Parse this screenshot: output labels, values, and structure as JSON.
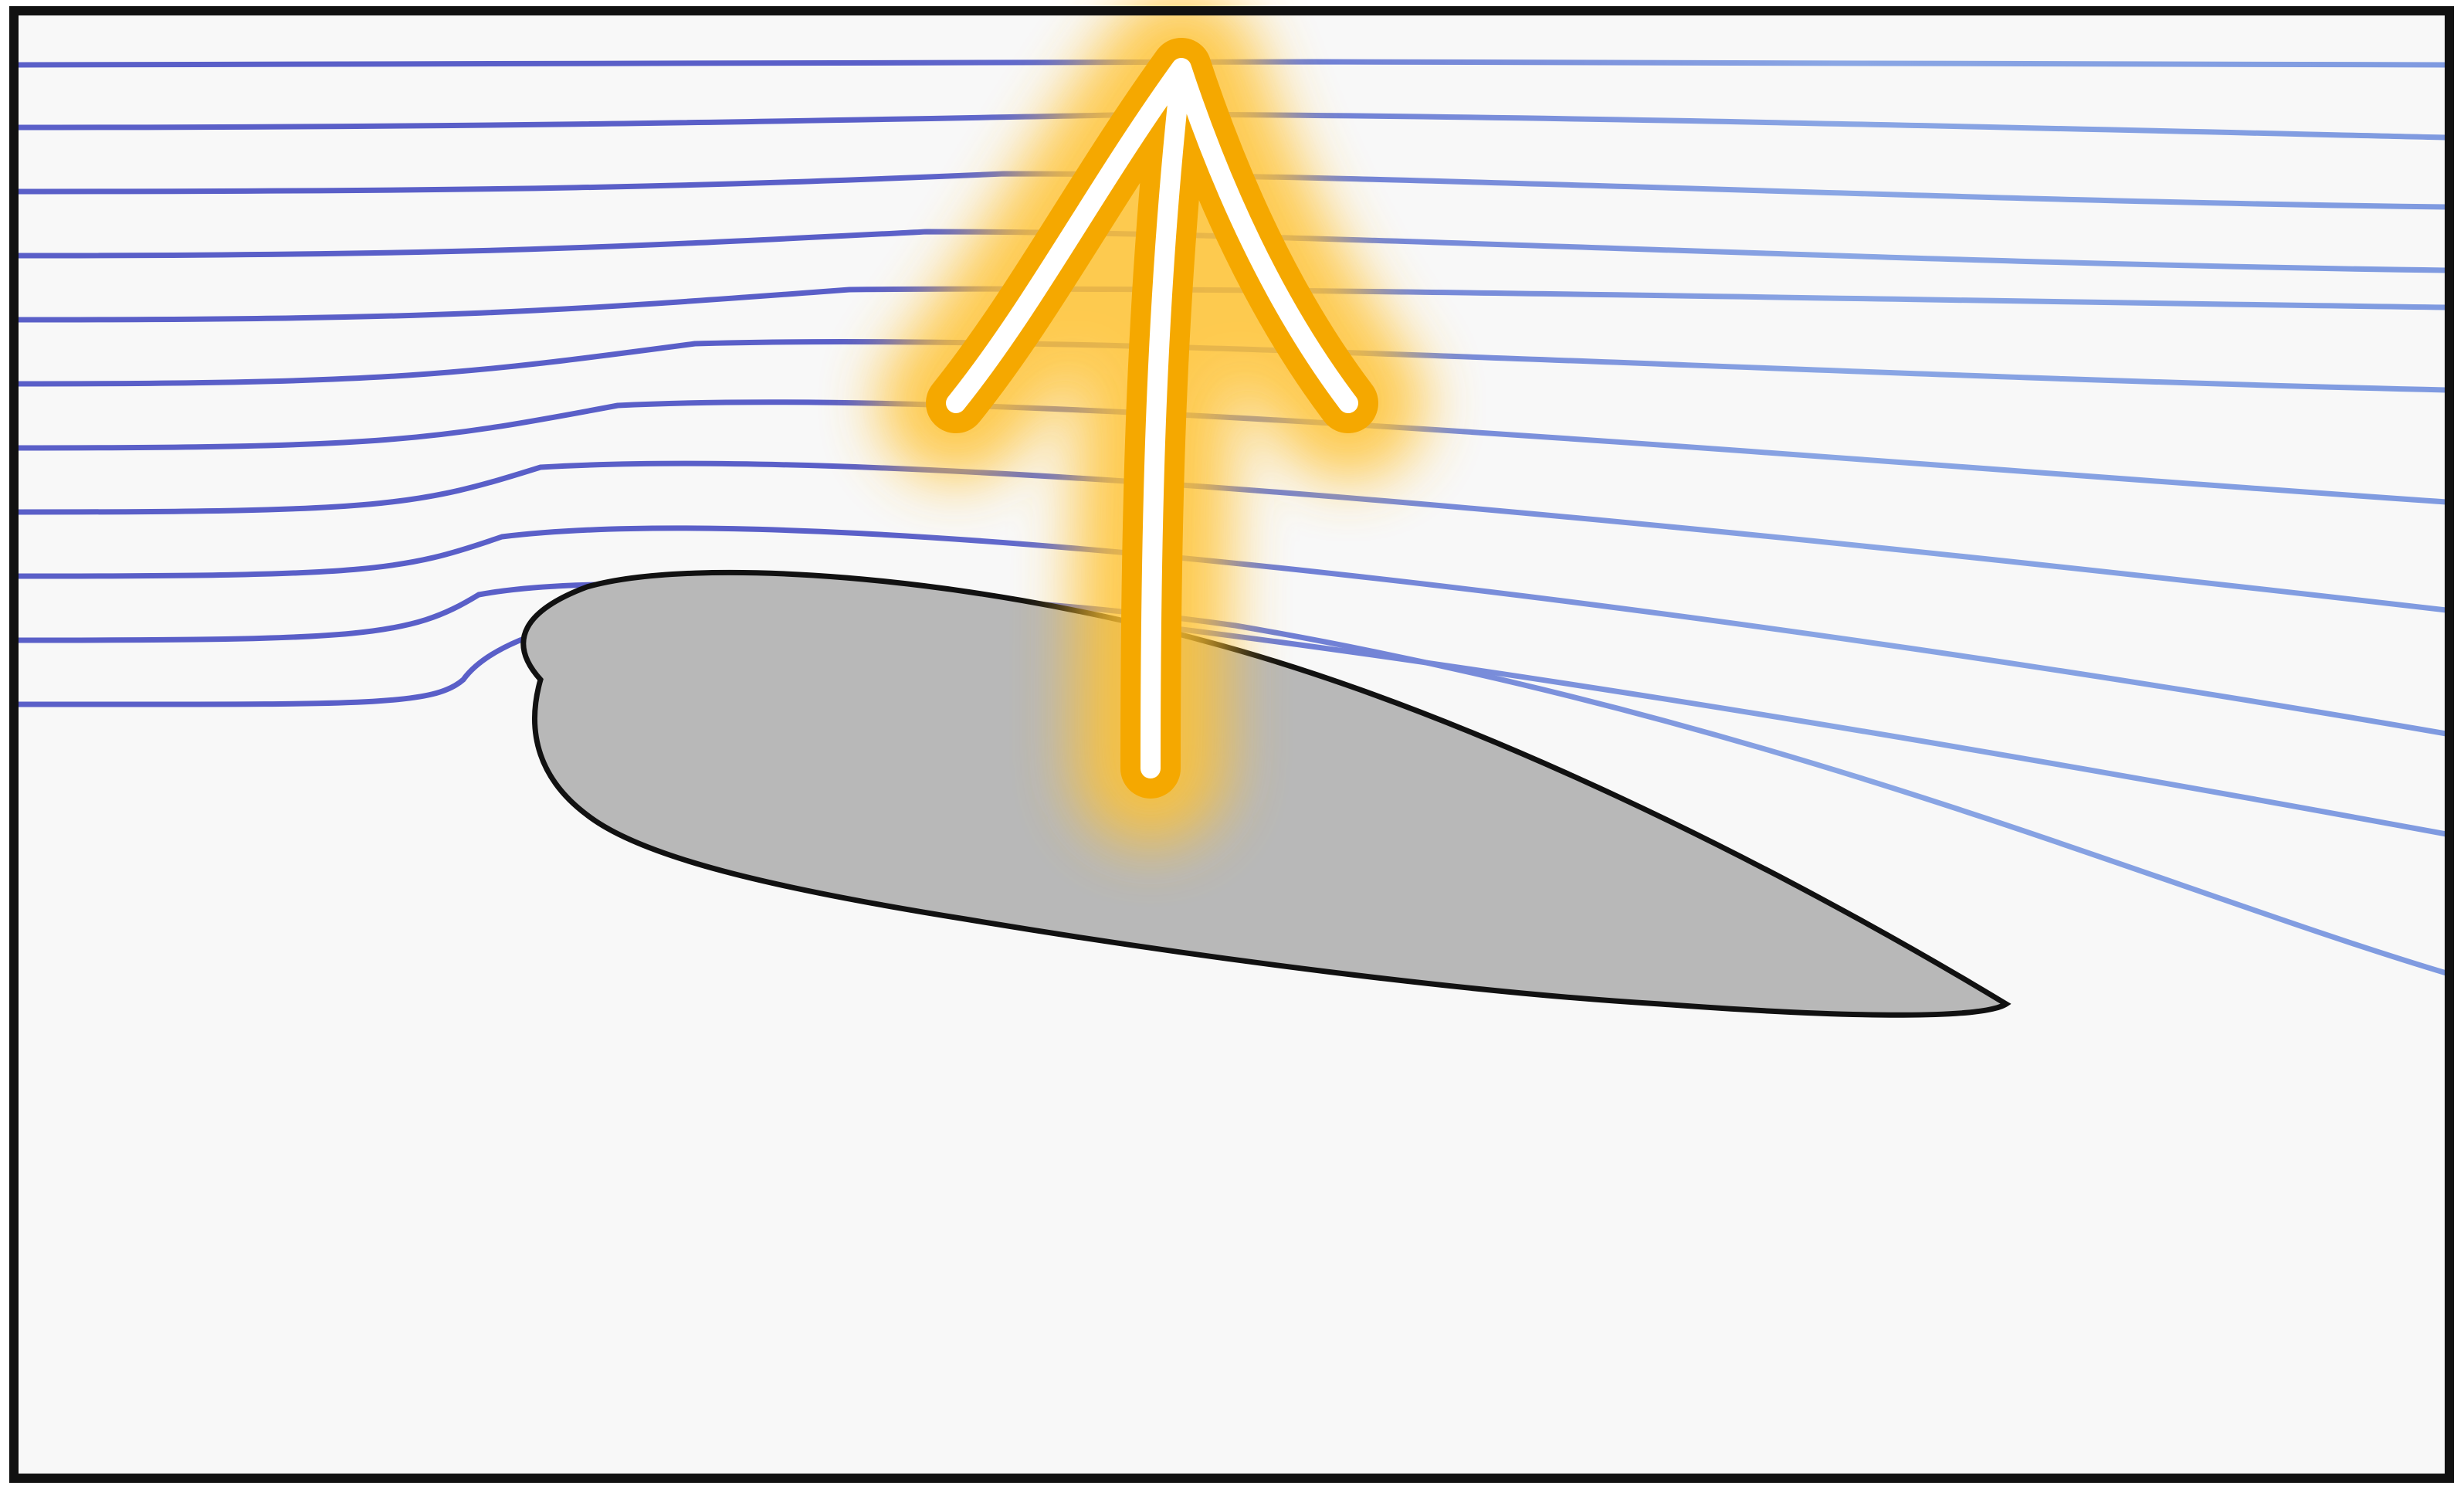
{
  "colors": {
    "background": "#f8f8f8",
    "frame": "#111111",
    "streamline_dark": "#5a5fc8",
    "streamline_light": "#8aa6e4",
    "airfoil_fill": "#b8b8b8",
    "airfoil_outline": "#111111",
    "arrow_outline": "#f5a800",
    "arrow_glow": "#ffc233",
    "arrow_core": "#ffffff"
  },
  "diagram": {
    "subject": "airfoil-streamlines",
    "streamline_count": 11,
    "icons": [
      "lift-arrow-icon"
    ]
  }
}
